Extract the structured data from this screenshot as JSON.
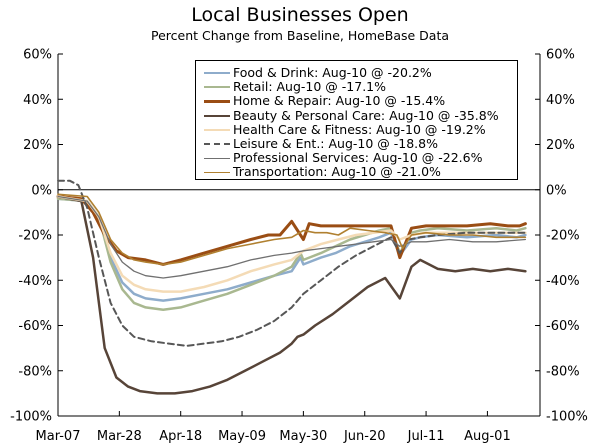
{
  "title": "Local Businesses Open",
  "subtitle": "Percent Change from Baseline, HomeBase Data",
  "chart_data": {
    "type": "line",
    "title": "Local Businesses Open",
    "subtitle": "Percent Change from Baseline, HomeBase Data",
    "xlabel": "",
    "ylabel": "",
    "ylim": [
      -100,
      60
    ],
    "yticks": [
      60,
      40,
      20,
      0,
      -20,
      -40,
      -60,
      -80,
      -100
    ],
    "ytick_labels": [
      "60%",
      "40%",
      "20%",
      "0%",
      "-20%",
      "-40%",
      "-60%",
      "-80%",
      "-100%"
    ],
    "xticks": [
      0,
      21,
      42,
      63,
      84,
      105,
      126,
      147
    ],
    "xtick_labels": [
      "Mar-07",
      "Mar-28",
      "Apr-18",
      "May-09",
      "May-30",
      "Jun-20",
      "Jul-11",
      "Aug-01"
    ],
    "x_range": [
      0,
      165
    ],
    "legend_position": "top-right",
    "grid": false,
    "series": [
      {
        "name": "Food & Drink: Aug-10 @ -20.2%",
        "color": "#8eaccb",
        "width": 2.5,
        "dash": "",
        "x": [
          0,
          10,
          14,
          18,
          22,
          26,
          30,
          36,
          42,
          50,
          58,
          66,
          74,
          80,
          83,
          84,
          86,
          90,
          95,
          100,
          105,
          110,
          114,
          117,
          121,
          124,
          130,
          140,
          150,
          157,
          160
        ],
        "y": [
          -4,
          -5,
          -12,
          -30,
          -41,
          -46,
          -48,
          -49,
          -48,
          -46,
          -44,
          -41,
          -38,
          -36,
          -30,
          -33,
          -32,
          -30,
          -28,
          -25,
          -23,
          -21,
          -19,
          -29,
          -22,
          -21,
          -20,
          -21,
          -20,
          -21,
          -20
        ]
      },
      {
        "name": "Retail: Aug-10 @ -17.1%",
        "color": "#a9b890",
        "width": 2.5,
        "dash": "",
        "x": [
          0,
          10,
          14,
          18,
          22,
          26,
          30,
          36,
          42,
          50,
          58,
          66,
          74,
          80,
          83,
          84,
          86,
          90,
          95,
          100,
          105,
          110,
          114,
          117,
          121,
          124,
          130,
          140,
          150,
          157,
          160
        ],
        "y": [
          -4,
          -5,
          -12,
          -32,
          -44,
          -50,
          -52,
          -53,
          -52,
          -49,
          -46,
          -42,
          -38,
          -34,
          -28,
          -31,
          -30,
          -28,
          -25,
          -22,
          -20,
          -18,
          -17,
          -28,
          -19,
          -18,
          -17,
          -18,
          -17,
          -18,
          -17
        ]
      },
      {
        "name": "Home & Repair: Aug-10 @ -15.4%",
        "color": "#9a4d14",
        "width": 3,
        "dash": "",
        "x": [
          0,
          8,
          12,
          16,
          20,
          24,
          30,
          36,
          42,
          50,
          58,
          66,
          72,
          76,
          80,
          84,
          86,
          90,
          96,
          102,
          108,
          114,
          117,
          121,
          126,
          132,
          140,
          148,
          154,
          158,
          160
        ],
        "y": [
          -3,
          -4,
          -10,
          -20,
          -27,
          -30,
          -31,
          -33,
          -31,
          -28,
          -25,
          -22,
          -20,
          -20,
          -14,
          -22,
          -15,
          -16,
          -16,
          -16,
          -16,
          -16,
          -30,
          -17,
          -16,
          -16,
          -16,
          -15,
          -16,
          -16,
          -15
        ]
      },
      {
        "name": "Beauty & Personal Care: Aug-10 @ -35.8%",
        "color": "#574438",
        "width": 2.5,
        "dash": "",
        "x": [
          0,
          8,
          12,
          16,
          20,
          24,
          28,
          34,
          40,
          46,
          52,
          58,
          64,
          70,
          76,
          80,
          82,
          84,
          88,
          94,
          100,
          106,
          112,
          117,
          121,
          124,
          130,
          136,
          142,
          148,
          154,
          160
        ],
        "y": [
          -3,
          -5,
          -30,
          -70,
          -83,
          -87,
          -89,
          -90,
          -90,
          -89,
          -87,
          -84,
          -80,
          -76,
          -72,
          -68,
          -65,
          -64,
          -60,
          -55,
          -49,
          -43,
          -39,
          -48,
          -34,
          -31,
          -35,
          -36,
          -35,
          -36,
          -35,
          -36
        ]
      },
      {
        "name": "Health Care & Fitness: Aug-10 @ -19.2%",
        "color": "#f4dbb6",
        "width": 2.5,
        "dash": "",
        "x": [
          0,
          10,
          14,
          18,
          22,
          26,
          30,
          36,
          42,
          50,
          58,
          66,
          74,
          80,
          84,
          90,
          96,
          102,
          108,
          114,
          117,
          121,
          126,
          134,
          142,
          150,
          160
        ],
        "y": [
          -3,
          -5,
          -12,
          -28,
          -38,
          -42,
          -44,
          -45,
          -45,
          -43,
          -40,
          -36,
          -33,
          -31,
          -27,
          -24,
          -22,
          -20,
          -19,
          -18,
          -22,
          -20,
          -19,
          -19,
          -19,
          -19,
          -19
        ]
      },
      {
        "name": "Leisure & Ent.: Aug-10 @ -18.8%",
        "color": "#575757",
        "width": 2,
        "dash": "6,4",
        "x": [
          0,
          4,
          7,
          10,
          14,
          18,
          22,
          26,
          32,
          38,
          44,
          50,
          56,
          62,
          68,
          74,
          80,
          84,
          90,
          96,
          102,
          108,
          114,
          117,
          120,
          124,
          130,
          140,
          150,
          160
        ],
        "y": [
          4,
          4,
          2,
          -8,
          -30,
          -50,
          -60,
          -65,
          -67,
          -68,
          -69,
          -68,
          -67,
          -65,
          -62,
          -58,
          -52,
          -46,
          -40,
          -34,
          -29,
          -25,
          -21,
          -28,
          -22,
          -21,
          -20,
          -19,
          -19,
          -19
        ]
      },
      {
        "name": "Professional Services: Aug-10 @ -22.6%",
        "color": "#707070",
        "width": 1.3,
        "dash": "",
        "x": [
          0,
          10,
          14,
          18,
          22,
          26,
          30,
          36,
          42,
          50,
          58,
          66,
          74,
          80,
          84,
          90,
          96,
          102,
          108,
          114,
          117,
          121,
          126,
          134,
          142,
          150,
          160
        ],
        "y": [
          -3,
          -5,
          -12,
          -24,
          -32,
          -36,
          -38,
          -39,
          -38,
          -36,
          -34,
          -31,
          -29,
          -28,
          -27,
          -26,
          -25,
          -24,
          -23,
          -22,
          -25,
          -23,
          -23,
          -22,
          -23,
          -23,
          -22
        ]
      },
      {
        "name": "Transportation: Aug-10 @ -21.0%",
        "color": "#b08030",
        "width": 1.6,
        "dash": "",
        "x": [
          0,
          10,
          14,
          18,
          22,
          26,
          30,
          36,
          42,
          50,
          58,
          66,
          74,
          80,
          84,
          88,
          92,
          96,
          100,
          106,
          112,
          116,
          118,
          121,
          126,
          134,
          142,
          150,
          160
        ],
        "y": [
          -2,
          -3,
          -10,
          -22,
          -28,
          -31,
          -32,
          -33,
          -32,
          -29,
          -26,
          -24,
          -22,
          -21,
          -18,
          -19,
          -19,
          -20,
          -17,
          -18,
          -19,
          -20,
          -26,
          -20,
          -19,
          -20,
          -20,
          -21,
          -21
        ]
      }
    ]
  }
}
